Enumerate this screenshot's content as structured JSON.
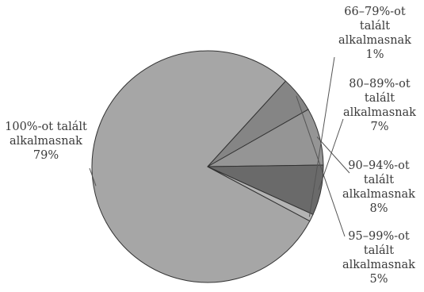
{
  "chart_data": {
    "type": "pie",
    "slices": [
      {
        "label": [
          "100%-ot talált",
          "alkalmasnak",
          "79%"
        ],
        "value": 79,
        "color": "#a6a6a6"
      },
      {
        "label": [
          "95–99%-ot",
          "talált",
          "alkalmasnak",
          "5%"
        ],
        "value": 5,
        "color": "#858585"
      },
      {
        "label": [
          "90–94%-ot",
          "talált",
          "alkalmasnak",
          "8%"
        ],
        "value": 8,
        "color": "#959595"
      },
      {
        "label": [
          "80–89%-ot",
          "talált",
          "alkalmasnak",
          "7%"
        ],
        "value": 7,
        "color": "#6a6a6a"
      },
      {
        "label": [
          "66–79%-ot",
          "talált",
          "alkalmasnak",
          "1%"
        ],
        "value": 1,
        "color": "#b4b4b4"
      }
    ]
  }
}
